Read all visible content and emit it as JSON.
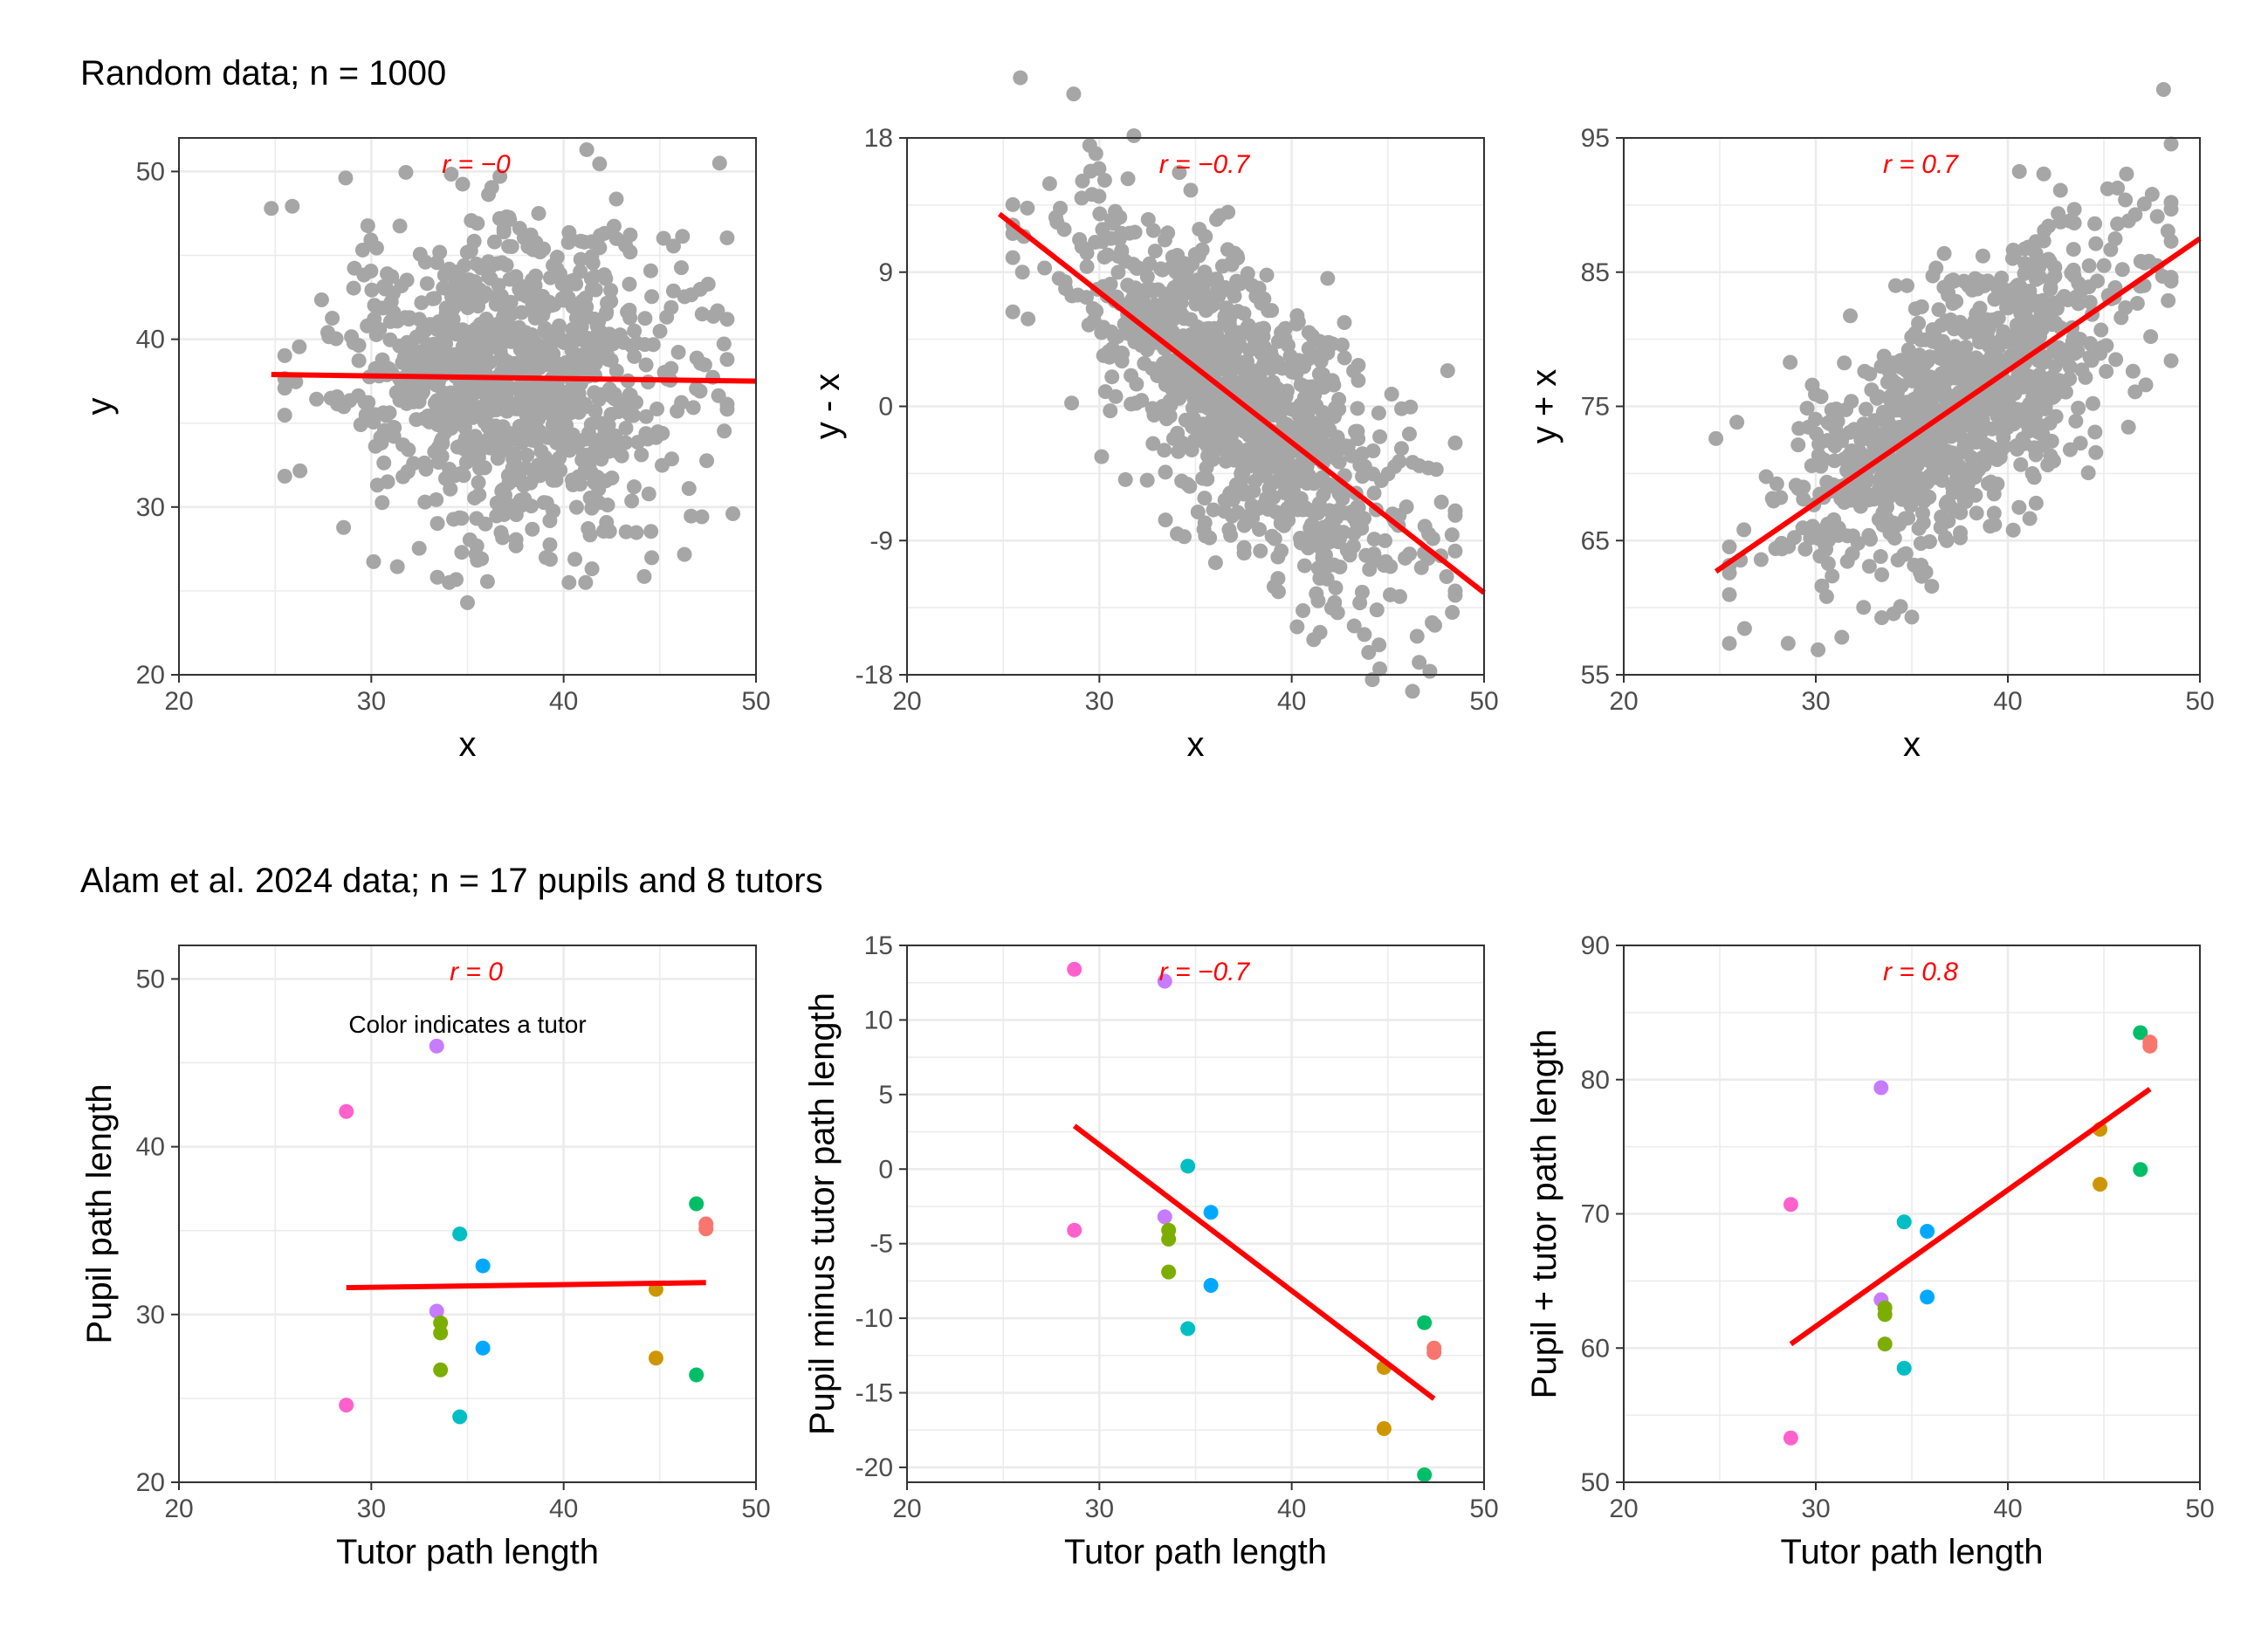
{
  "figure": {
    "row_titles": [
      "Random data; n = 1000",
      "Alam et al. 2024 data; n = 17 pupils and 8 tutors"
    ],
    "annotation": "Color indicates a tutor",
    "colors": {
      "points_gray": "#a6a6a6",
      "fit_line": "#ff0000",
      "r_label": "#ff0000",
      "grid": "#ebebeb",
      "axis": "#333333",
      "tutors": [
        "#f8766d",
        "#cd9600",
        "#7cae00",
        "#00be67",
        "#00bfc4",
        "#00a9ff",
        "#c77cff",
        "#ff61cc"
      ]
    }
  },
  "chart_data": [
    {
      "id": "p1",
      "type": "scatter",
      "title": "",
      "r_label": "r = −0",
      "xlabel": "x",
      "ylabel": "y",
      "xlim": [
        20,
        50
      ],
      "ylim": [
        20,
        52
      ],
      "xticks": [
        20,
        30,
        40,
        50
      ],
      "xtick_labels": [
        "20",
        "30",
        "40",
        "50"
      ],
      "yticks": [
        20,
        30,
        40,
        50
      ],
      "ytick_labels": [
        "20",
        "30",
        "40",
        "50"
      ],
      "grid": true,
      "points_note": "1000 random points: x ~ N(37.5, 4.5), y ~ N(37.5, 4.5), independent",
      "points": [
        [
          24.8,
          47.8
        ],
        [
          41.2,
          51.3
        ],
        [
          35.0,
          24.3
        ],
        [
          48.8,
          29.6
        ],
        [
          34.7,
          27.3
        ],
        [
          47.2,
          41.5
        ],
        [
          48.0,
          41.7
        ]
      ],
      "fit": [
        [
          24.8,
          37.9
        ],
        [
          50,
          37.5
        ]
      ]
    },
    {
      "id": "p2",
      "type": "scatter",
      "title": "",
      "r_label": "r = −0.7",
      "xlabel": "x",
      "ylabel": "y - x",
      "xlim": [
        20,
        50
      ],
      "ylim": [
        -18,
        18
      ],
      "xticks": [
        20,
        30,
        40,
        50
      ],
      "xtick_labels": [
        "20",
        "30",
        "40",
        "50"
      ],
      "yticks": [
        -18,
        -9,
        0,
        9,
        18
      ],
      "ytick_labels": [
        "-18",
        "-9",
        "0",
        "9",
        "18"
      ],
      "grid": true,
      "points_note": "same 1000 points transformed to (x, y - x)",
      "points": [
        [
          29.5,
          17.5
        ],
        [
          48.5,
          -7.0
        ],
        [
          44.0,
          -16.5
        ],
        [
          26.0,
          9.0
        ],
        [
          47.3,
          -14.5
        ]
      ],
      "fit": [
        [
          24.8,
          12.9
        ],
        [
          50,
          -12.5
        ]
      ]
    },
    {
      "id": "p3",
      "type": "scatter",
      "title": "",
      "r_label": "r = 0.7",
      "xlabel": "x",
      "ylabel": "y + x",
      "xlim": [
        20,
        50
      ],
      "ylim": [
        55,
        95
      ],
      "xticks": [
        20,
        30,
        40,
        50
      ],
      "xtick_labels": [
        "20",
        "30",
        "40",
        "50"
      ],
      "yticks": [
        55,
        65,
        75,
        85,
        95
      ],
      "ytick_labels": [
        "55",
        "65",
        "75",
        "85",
        "95"
      ],
      "grid": true,
      "points_note": "same 1000 points transformed to (x, y + x)",
      "points": [
        [
          24.8,
          72.6
        ],
        [
          40.6,
          92.5
        ],
        [
          35.0,
          59.3
        ],
        [
          48.5,
          90.2
        ],
        [
          48.5,
          78.4
        ]
      ],
      "fit": [
        [
          24.8,
          62.7
        ],
        [
          50,
          87.5
        ]
      ]
    },
    {
      "id": "p4",
      "type": "scatter",
      "title": "",
      "r_label": "r = 0",
      "xlabel": "Tutor path length",
      "ylabel": "Pupil path length",
      "xlim": [
        20,
        50
      ],
      "ylim": [
        20,
        52
      ],
      "xticks": [
        20,
        30,
        40,
        50
      ],
      "xtick_labels": [
        "20",
        "30",
        "40",
        "50"
      ],
      "yticks": [
        20,
        30,
        40,
        50
      ],
      "ytick_labels": [
        "20",
        "30",
        "40",
        "50"
      ],
      "grid": true,
      "points": [
        {
          "tutor": 7,
          "x": 28.7,
          "y": 42.1
        },
        {
          "tutor": 7,
          "x": 28.7,
          "y": 24.6
        },
        {
          "tutor": 6,
          "x": 33.4,
          "y": 46.0
        },
        {
          "tutor": 6,
          "x": 33.4,
          "y": 30.2
        },
        {
          "tutor": 2,
          "x": 33.6,
          "y": 29.5
        },
        {
          "tutor": 2,
          "x": 33.6,
          "y": 28.9
        },
        {
          "tutor": 2,
          "x": 33.6,
          "y": 26.7
        },
        {
          "tutor": 4,
          "x": 34.6,
          "y": 34.8
        },
        {
          "tutor": 4,
          "x": 34.6,
          "y": 23.9
        },
        {
          "tutor": 5,
          "x": 35.8,
          "y": 32.9
        },
        {
          "tutor": 5,
          "x": 35.8,
          "y": 28.0
        },
        {
          "tutor": 1,
          "x": 44.8,
          "y": 31.5
        },
        {
          "tutor": 1,
          "x": 44.8,
          "y": 27.4
        },
        {
          "tutor": 3,
          "x": 46.9,
          "y": 36.6
        },
        {
          "tutor": 3,
          "x": 46.9,
          "y": 26.4
        },
        {
          "tutor": 0,
          "x": 47.4,
          "y": 35.4
        },
        {
          "tutor": 0,
          "x": 47.4,
          "y": 35.1
        }
      ],
      "fit": [
        [
          28.7,
          31.6
        ],
        [
          47.4,
          31.9
        ]
      ]
    },
    {
      "id": "p5",
      "type": "scatter",
      "title": "",
      "r_label": "r = −0.7",
      "xlabel": "Tutor path length",
      "ylabel": "Pupil minus tutor path length",
      "xlim": [
        20,
        50
      ],
      "ylim": [
        -21,
        15
      ],
      "xticks": [
        20,
        30,
        40,
        50
      ],
      "xtick_labels": [
        "20",
        "30",
        "40",
        "50"
      ],
      "yticks": [
        -20,
        -15,
        -10,
        -5,
        0,
        5,
        10,
        15
      ],
      "ytick_labels": [
        "-20",
        "-15",
        "-10",
        "-5",
        "0",
        "5",
        "10",
        "15"
      ],
      "grid": true,
      "points": [
        {
          "tutor": 7,
          "x": 28.7,
          "y": 13.4
        },
        {
          "tutor": 7,
          "x": 28.7,
          "y": -4.1
        },
        {
          "tutor": 6,
          "x": 33.4,
          "y": 12.6
        },
        {
          "tutor": 6,
          "x": 33.4,
          "y": -3.2
        },
        {
          "tutor": 2,
          "x": 33.6,
          "y": -4.1
        },
        {
          "tutor": 2,
          "x": 33.6,
          "y": -4.7
        },
        {
          "tutor": 2,
          "x": 33.6,
          "y": -6.9
        },
        {
          "tutor": 4,
          "x": 34.6,
          "y": 0.2
        },
        {
          "tutor": 4,
          "x": 34.6,
          "y": -10.7
        },
        {
          "tutor": 5,
          "x": 35.8,
          "y": -2.9
        },
        {
          "tutor": 5,
          "x": 35.8,
          "y": -7.8
        },
        {
          "tutor": 1,
          "x": 44.8,
          "y": -13.3
        },
        {
          "tutor": 1,
          "x": 44.8,
          "y": -17.4
        },
        {
          "tutor": 3,
          "x": 46.9,
          "y": -10.3
        },
        {
          "tutor": 3,
          "x": 46.9,
          "y": -20.5
        },
        {
          "tutor": 0,
          "x": 47.4,
          "y": -12.0
        },
        {
          "tutor": 0,
          "x": 47.4,
          "y": -12.3
        }
      ],
      "fit": [
        [
          28.7,
          2.9
        ],
        [
          47.4,
          -15.4
        ]
      ]
    },
    {
      "id": "p6",
      "type": "scatter",
      "title": "",
      "r_label": "r = 0.8",
      "xlabel": "Tutor path length",
      "ylabel": "Pupil + tutor path length",
      "xlim": [
        20,
        50
      ],
      "ylim": [
        50,
        90
      ],
      "xticks": [
        20,
        30,
        40,
        50
      ],
      "xtick_labels": [
        "20",
        "30",
        "40",
        "50"
      ],
      "yticks": [
        50,
        60,
        70,
        80,
        90
      ],
      "ytick_labels": [
        "50",
        "60",
        "70",
        "80",
        "90"
      ],
      "grid": true,
      "points": [
        {
          "tutor": 7,
          "x": 28.7,
          "y": 70.7
        },
        {
          "tutor": 7,
          "x": 28.7,
          "y": 53.3
        },
        {
          "tutor": 6,
          "x": 33.4,
          "y": 79.4
        },
        {
          "tutor": 6,
          "x": 33.4,
          "y": 63.6
        },
        {
          "tutor": 2,
          "x": 33.6,
          "y": 63.0
        },
        {
          "tutor": 2,
          "x": 33.6,
          "y": 62.5
        },
        {
          "tutor": 2,
          "x": 33.6,
          "y": 60.3
        },
        {
          "tutor": 4,
          "x": 34.6,
          "y": 69.4
        },
        {
          "tutor": 4,
          "x": 34.6,
          "y": 58.5
        },
        {
          "tutor": 5,
          "x": 35.8,
          "y": 68.7
        },
        {
          "tutor": 5,
          "x": 35.8,
          "y": 63.8
        },
        {
          "tutor": 1,
          "x": 44.8,
          "y": 76.3
        },
        {
          "tutor": 1,
          "x": 44.8,
          "y": 72.2
        },
        {
          "tutor": 3,
          "x": 46.9,
          "y": 83.5
        },
        {
          "tutor": 3,
          "x": 46.9,
          "y": 73.3
        },
        {
          "tutor": 0,
          "x": 47.4,
          "y": 82.8
        },
        {
          "tutor": 0,
          "x": 47.4,
          "y": 82.5
        }
      ],
      "fit": [
        [
          28.7,
          60.3
        ],
        [
          47.4,
          79.3
        ]
      ]
    }
  ]
}
